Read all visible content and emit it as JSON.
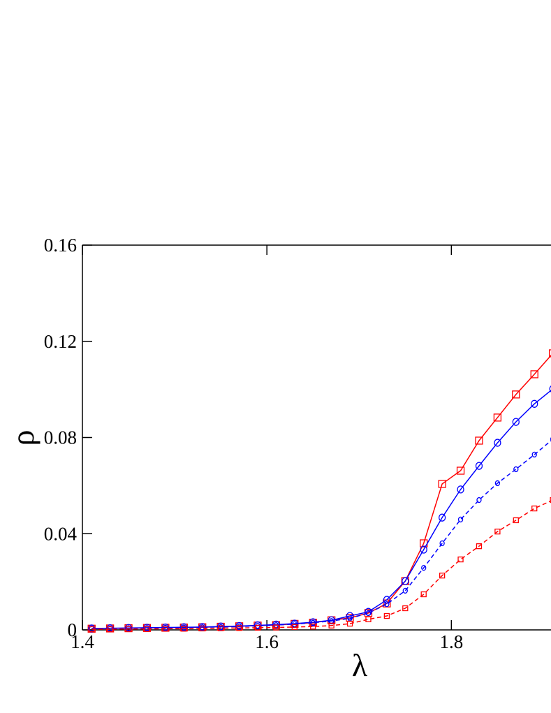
{
  "chart_data": {
    "type": "line",
    "x_label": "λ",
    "y_label": "ρ",
    "x": [
      1.41,
      1.43,
      1.45,
      1.47,
      1.49,
      1.51,
      1.53,
      1.55,
      1.57,
      1.59,
      1.61,
      1.63,
      1.65,
      1.67,
      1.69,
      1.71,
      1.73,
      1.75,
      1.77,
      1.79,
      1.81,
      1.83,
      1.85,
      1.87,
      1.89,
      1.91
    ],
    "xlim": [
      1.4,
      1.908
    ],
    "ylim": [
      0,
      0.16
    ],
    "xticks": [
      1.4,
      1.6,
      1.8
    ],
    "yticks": [
      0,
      0.04,
      0.08,
      0.12,
      0.16
    ],
    "series": [
      {
        "color": "#ff0000",
        "dash": "solid",
        "marker": "square",
        "values": [
          0.0005,
          0.0006,
          0.0007,
          0.0008,
          0.0009,
          0.001,
          0.0011,
          0.0013,
          0.0015,
          0.0018,
          0.002,
          0.0025,
          0.003,
          0.004,
          0.005,
          0.007,
          0.011,
          0.0203,
          0.036,
          0.0607,
          0.0662,
          0.0787,
          0.0883,
          0.0979,
          0.1063,
          0.115
        ]
      },
      {
        "color": "#0000ff",
        "dash": "solid",
        "marker": "circle",
        "values": [
          0.0006,
          0.0007,
          0.0008,
          0.0009,
          0.001,
          0.0011,
          0.0012,
          0.0014,
          0.0016,
          0.0019,
          0.0022,
          0.0026,
          0.0032,
          0.004,
          0.0058,
          0.0075,
          0.0125,
          0.0203,
          0.0334,
          0.0467,
          0.0584,
          0.0682,
          0.0778,
          0.0865,
          0.094,
          0.1002
        ]
      },
      {
        "color": "#0000ff",
        "dash": "dashed",
        "marker": "circle",
        "values": [
          0.0005,
          0.0006,
          0.0007,
          0.0008,
          0.0009,
          0.001,
          0.0011,
          0.0012,
          0.0014,
          0.0017,
          0.002,
          0.0024,
          0.003,
          0.0037,
          0.0048,
          0.007,
          0.0107,
          0.0163,
          0.0258,
          0.036,
          0.0459,
          0.054,
          0.061,
          0.0668,
          0.0729,
          0.0793
        ]
      },
      {
        "color": "#ff0000",
        "dash": "dashed",
        "marker": "square",
        "values": [
          0.0003,
          0.0003,
          0.0004,
          0.0004,
          0.0005,
          0.0005,
          0.0006,
          0.0007,
          0.0008,
          0.0009,
          0.001,
          0.0012,
          0.0014,
          0.0018,
          0.0026,
          0.0044,
          0.0058,
          0.009,
          0.0148,
          0.0226,
          0.0293,
          0.0348,
          0.0409,
          0.0456,
          0.0505,
          0.054
        ]
      }
    ]
  }
}
